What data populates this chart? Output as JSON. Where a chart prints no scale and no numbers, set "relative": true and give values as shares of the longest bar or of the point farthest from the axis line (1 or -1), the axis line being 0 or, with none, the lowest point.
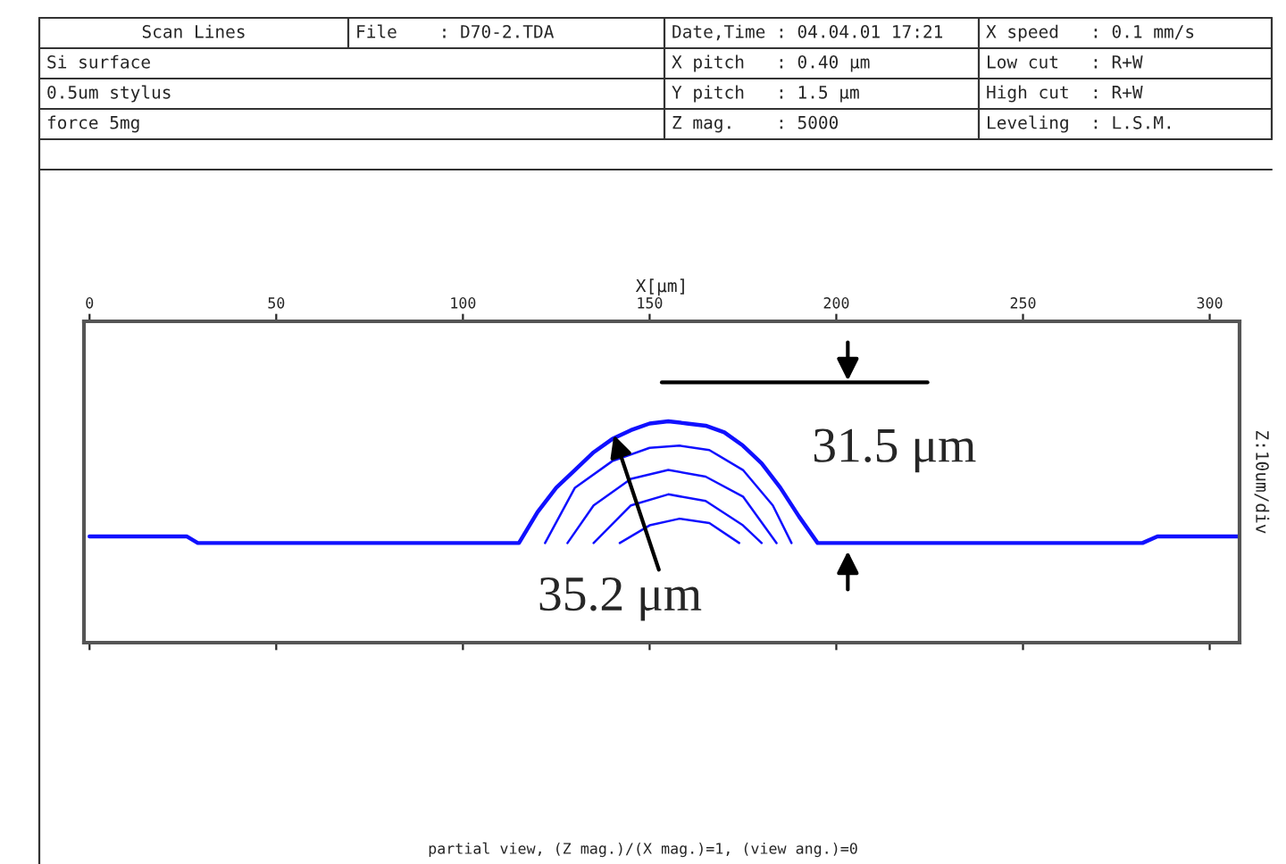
{
  "chart_data": {
    "type": "line",
    "relative": true,
    "xlabel": "X[μm]",
    "ylabel": "Z:10um/div",
    "xlim": [
      -1.5,
      308
    ],
    "xticks": [
      0,
      50,
      100,
      150,
      200,
      250,
      300
    ],
    "tick_labels": "x",
    "grid": false,
    "legend": false,
    "marker": "none",
    "line_style": "solid",
    "series": [
      {
        "color": "#1010ff",
        "x": [
          0,
          26,
          29,
          115,
          120,
          125,
          130,
          135,
          140,
          145,
          150,
          155,
          160,
          165,
          170,
          175,
          180,
          185,
          190,
          195,
          282,
          286,
          308
        ],
        "values": [
          0.48,
          0.48,
          0.45,
          0.45,
          0.59,
          0.7,
          0.78,
          0.86,
          0.92,
          0.96,
          0.99,
          1.0,
          0.99,
          0.98,
          0.95,
          0.89,
          0.81,
          0.7,
          0.57,
          0.45,
          0.45,
          0.48,
          0.48
        ]
      },
      {
        "color": "#1010ff",
        "x": [
          122,
          130,
          140,
          150,
          158,
          166,
          175,
          183,
          188
        ],
        "values": [
          0.45,
          0.7,
          0.82,
          0.88,
          0.89,
          0.87,
          0.78,
          0.62,
          0.45
        ]
      },
      {
        "color": "#1010ff",
        "x": [
          128,
          135,
          145,
          155,
          165,
          175,
          184
        ],
        "values": [
          0.45,
          0.62,
          0.74,
          0.78,
          0.75,
          0.66,
          0.45
        ]
      },
      {
        "color": "#1010ff",
        "x": [
          135,
          145,
          155,
          165,
          175,
          180
        ],
        "values": [
          0.45,
          0.62,
          0.67,
          0.64,
          0.53,
          0.45
        ]
      },
      {
        "color": "#1010ff",
        "x": [
          142,
          150,
          158,
          166,
          174
        ],
        "values": [
          0.45,
          0.53,
          0.56,
          0.54,
          0.45
        ]
      }
    ],
    "annotations": [
      "Scan Lines",
      "File    : D70-2.TDA",
      "Date,Time : 04.04.01 17:21",
      "X speed   : 0.1 mm/s",
      "Si surface",
      "X pitch   : 0.40 μm",
      "Low cut   : R+W",
      "0.5um stylus",
      "Y pitch   : 1.5 μm",
      "High cut  : R+W",
      "force 5mg",
      "Z mag.    : 5000",
      "Leveling  : L.S.M.",
      "31.5 μm",
      {
        "text": "35.2 μm",
        "x": 140,
        "y": 0.96
      },
      "partial view, (Z mag.)/(X mag.)=1, (view ang.)=0"
    ]
  }
}
